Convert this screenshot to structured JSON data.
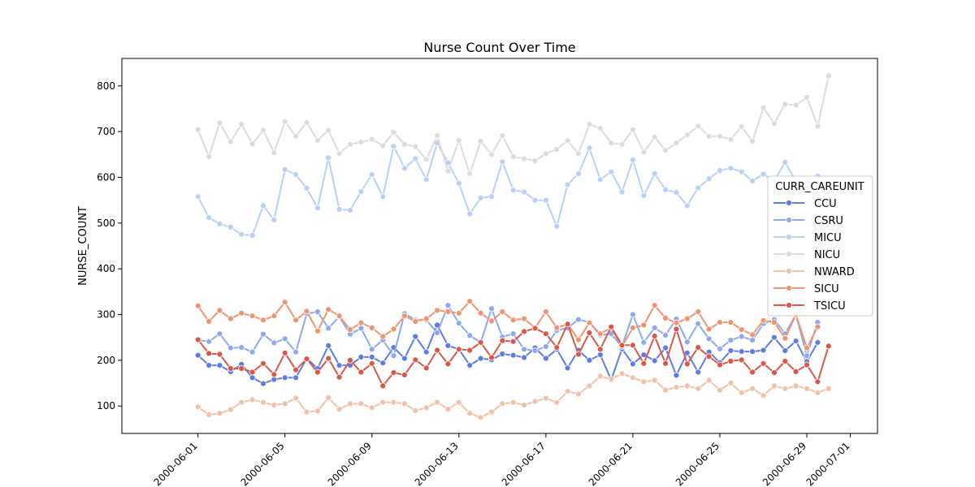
{
  "chart_data": {
    "type": "line",
    "title": "Nurse Count Over Time",
    "xlabel": "",
    "ylabel": "NURSE_COUNT",
    "ylim": [
      40,
      860
    ],
    "xlim": [
      "2000-05-28T12:00",
      "2000-07-02T06:00"
    ],
    "yticks": [
      100,
      200,
      300,
      400,
      500,
      600,
      700,
      800
    ],
    "xticks": [
      "2000-06-01",
      "2000-06-05",
      "2000-06-09",
      "2000-06-13",
      "2000-06-17",
      "2000-06-21",
      "2000-06-25",
      "2000-06-29",
      "2000-07-01"
    ],
    "legend": {
      "title": "CURR_CAREUNIT",
      "placement": "right"
    },
    "x_start": "2000-06-01",
    "x_step_days": 0.5,
    "series": [
      {
        "name": "CCU",
        "color": "#5d7ce6",
        "values": [
          211,
          189,
          189,
          175,
          191,
          162,
          149,
          158,
          162,
          162,
          204,
          182,
          232,
          189,
          189,
          207,
          207,
          194,
          228,
          204,
          252,
          218,
          277,
          232,
          224,
          189,
          204,
          201,
          214,
          211,
          206,
          227,
          204,
          224,
          183,
          222,
          200,
          212,
          157,
          225,
          192,
          212,
          199,
          227,
          167,
          216,
          174,
          218,
          195,
          221,
          219,
          219,
          222,
          250,
          221,
          242,
          197,
          239
        ]
      },
      {
        "name": "CSRU",
        "color": "#8da9f0",
        "values": [
          244,
          241,
          258,
          227,
          228,
          218,
          257,
          238,
          247,
          218,
          302,
          306,
          270,
          295,
          257,
          270,
          224,
          244,
          210,
          302,
          288,
          288,
          260,
          320,
          281,
          254,
          239,
          313,
          251,
          258,
          224,
          221,
          230,
          265,
          271,
          289,
          283,
          255,
          258,
          230,
          300,
          239,
          271,
          255,
          290,
          240,
          280,
          247,
          225,
          244,
          252,
          244,
          280,
          289,
          258,
          300,
          210,
          283
        ]
      },
      {
        "name": "MICU",
        "color": "#b9d0f8",
        "values": [
          558,
          512,
          498,
          491,
          475,
          473,
          538,
          507,
          617,
          606,
          576,
          533,
          643,
          530,
          528,
          569,
          606,
          558,
          668,
          620,
          641,
          595,
          675,
          632,
          587,
          520,
          555,
          558,
          634,
          572,
          568,
          550,
          550,
          493,
          584,
          608,
          664,
          595,
          612,
          568,
          638,
          560,
          608,
          573,
          567,
          538,
          577,
          597,
          615,
          620,
          612,
          592,
          607,
          592,
          633,
          592,
          588,
          603
        ]
      },
      {
        "name": "NICU",
        "color": "#dcdcdc",
        "values": [
          704,
          645,
          719,
          678,
          716,
          673,
          703,
          654,
          722,
          690,
          720,
          681,
          703,
          652,
          672,
          677,
          683,
          669,
          699,
          672,
          667,
          639,
          691,
          614,
          681,
          608,
          679,
          650,
          691,
          645,
          641,
          636,
          652,
          661,
          680,
          652,
          716,
          707,
          675,
          672,
          704,
          655,
          688,
          659,
          675,
          693,
          712,
          690,
          690,
          683,
          711,
          679,
          752,
          718,
          760,
          758,
          775,
          712,
          822
        ]
      },
      {
        "name": "NWARD",
        "color": "#f3c1a7",
        "values": [
          98,
          81,
          84,
          92,
          108,
          114,
          108,
          102,
          105,
          117,
          87,
          89,
          118,
          93,
          105,
          105,
          96,
          108,
          108,
          105,
          90,
          96,
          108,
          93,
          108,
          84,
          75,
          87,
          105,
          108,
          102,
          110,
          117,
          108,
          132,
          126,
          144,
          165,
          159,
          171,
          162,
          153,
          156,
          135,
          141,
          144,
          138,
          156,
          135,
          150,
          129,
          138,
          123,
          144,
          138,
          144,
          138,
          129,
          138
        ]
      },
      {
        "name": "SICU",
        "color": "#f0946f",
        "values": [
          319,
          285,
          309,
          291,
          303,
          297,
          288,
          297,
          327,
          288,
          307,
          264,
          311,
          297,
          267,
          282,
          271,
          252,
          268,
          297,
          285,
          291,
          309,
          306,
          303,
          329,
          303,
          286,
          306,
          288,
          291,
          271,
          306,
          271,
          279,
          245,
          282,
          258,
          271,
          230,
          271,
          277,
          320,
          292,
          282,
          291,
          306,
          268,
          283,
          283,
          267,
          256,
          287,
          283,
          248,
          300,
          227,
          273
        ]
      },
      {
        "name": "TSICU",
        "color": "#d95847",
        "values": [
          245,
          215,
          213,
          182,
          182,
          174,
          193,
          169,
          216,
          179,
          203,
          174,
          204,
          163,
          200,
          174,
          193,
          144,
          173,
          168,
          201,
          183,
          222,
          192,
          224,
          222,
          239,
          206,
          243,
          241,
          263,
          270,
          258,
          228,
          279,
          213,
          260,
          224,
          273,
          233,
          233,
          193,
          253,
          193,
          268,
          192,
          228,
          208,
          190,
          198,
          201,
          174,
          193,
          173,
          198,
          175,
          190,
          153,
          231
        ]
      }
    ]
  }
}
